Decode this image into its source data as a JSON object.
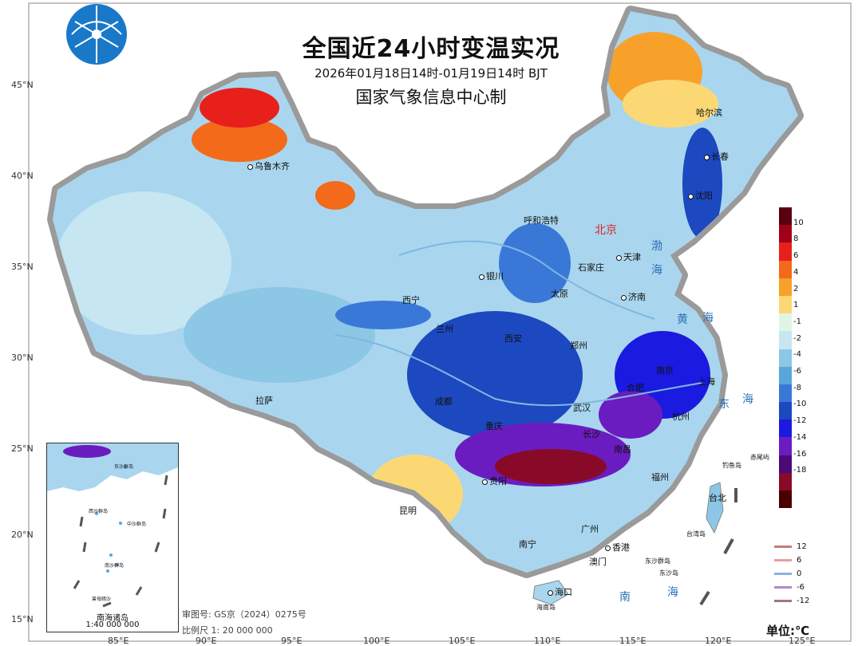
{
  "title": "全国近24小时变温实况",
  "subtitle": "2026年01月18日14时-01月19日14时 BJT",
  "producer": "国家气象信息中心制",
  "lat_labels": [
    "45°N",
    "40°N",
    "35°N",
    "30°N",
    "25°N",
    "20°N",
    "15°N"
  ],
  "lon_labels": [
    "85°E",
    "90°E",
    "95°E",
    "100°E",
    "105°E",
    "110°E",
    "115°E",
    "120°E",
    "125°E"
  ],
  "cities": [
    "乌鲁木齐",
    "哈尔滨",
    "长春",
    "沈阳",
    "呼和浩特",
    "北京",
    "天津",
    "石家庄",
    "太原",
    "济南",
    "银川",
    "西宁",
    "兰州",
    "西安",
    "郑州",
    "南京",
    "上海",
    "合肥",
    "武汉",
    "杭州",
    "成都",
    "重庆",
    "南昌",
    "长沙",
    "贵阳",
    "福州",
    "台北",
    "昆明",
    "南宁",
    "广州",
    "香港",
    "澳门",
    "海口",
    "拉萨"
  ],
  "seas": [
    "渤",
    "海",
    "黄",
    "海",
    "东",
    "海",
    "南",
    "海"
  ],
  "islands": [
    "钓鱼岛",
    "赤尾屿",
    "台湾岛",
    "东沙群岛",
    "东沙岛",
    "海南岛"
  ],
  "legend": {
    "colors": [
      "#5a0010",
      "#a00018",
      "#e8201c",
      "#f26a1a",
      "#f7a12a",
      "#fcd875",
      "#dff5e6",
      "#c6e6f1",
      "#8cc7e6",
      "#5aa6dc",
      "#3a78d8",
      "#1c48c0",
      "#1a1ae0",
      "#6b1cc0",
      "#4a0a78",
      "#880a28",
      "#4a0000"
    ],
    "ticks": [
      "10",
      "8",
      "6",
      "4",
      "2",
      "1",
      "-1",
      "-2",
      "-4",
      "-6",
      "-8",
      "-10",
      "-12",
      "-14",
      "-16",
      "-18"
    ]
  },
  "contour_legend": [
    {
      "label": "12",
      "color": "#c77a7a"
    },
    {
      "label": "6",
      "color": "#ee9a9a"
    },
    {
      "label": "0",
      "color": "#8ab0e6"
    },
    {
      "label": "-6",
      "color": "#b08ad0"
    },
    {
      "label": "-12",
      "color": "#9a7a7a"
    }
  ],
  "notes": {
    "approval": "审图号: GS京（2024）0275号",
    "scale": "比例尺  1: 20 000 000"
  },
  "unit": "单位:℃",
  "inset": {
    "title": "南海诸岛",
    "scale": "1:40 000 000",
    "labels": [
      "东沙群岛",
      "西沙群岛",
      "中沙群岛",
      "南沙群岛",
      "曾母暗沙"
    ]
  }
}
